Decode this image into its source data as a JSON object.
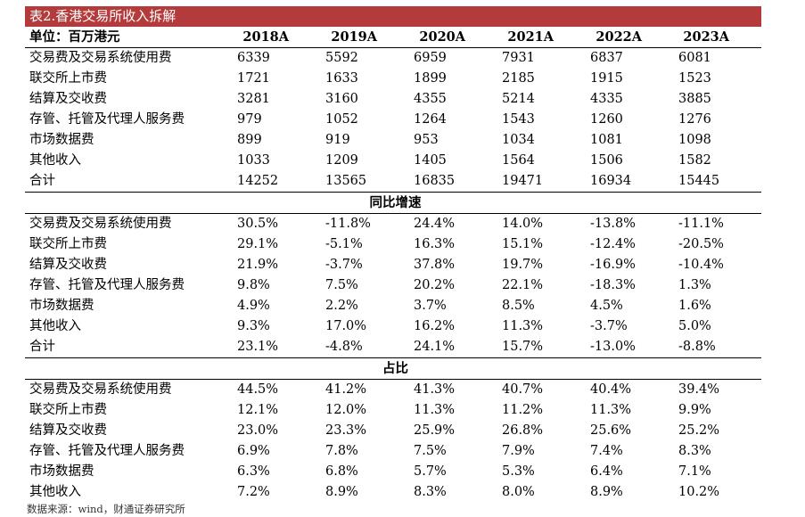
{
  "title": "表2.香港交易所收入拆解",
  "header": {
    "unit": "单位：百万港元",
    "years": [
      "2018A",
      "2019A",
      "2020A",
      "2021A",
      "2022A",
      "2023A"
    ]
  },
  "sections": [
    {
      "name": "",
      "rows": [
        {
          "label": "交易费及交易系统使用费",
          "values": [
            "6339",
            "5592",
            "6959",
            "7931",
            "6837",
            "6081"
          ]
        },
        {
          "label": "联交所上市费",
          "values": [
            "1721",
            "1633",
            "1899",
            "2185",
            "1915",
            "1523"
          ]
        },
        {
          "label": "结算及交收费",
          "values": [
            "3281",
            "3160",
            "4355",
            "5214",
            "4335",
            "3885"
          ]
        },
        {
          "label": "存管、托管及代理人服务费",
          "values": [
            "979",
            "1052",
            "1264",
            "1543",
            "1260",
            "1276"
          ]
        },
        {
          "label": "市场数据费",
          "values": [
            "899",
            "919",
            "953",
            "1034",
            "1081",
            "1098"
          ]
        },
        {
          "label": "其他收入",
          "values": [
            "1033",
            "1209",
            "1405",
            "1564",
            "1506",
            "1582"
          ]
        },
        {
          "label": "合计",
          "values": [
            "14252",
            "13565",
            "16835",
            "19471",
            "16934",
            "15445"
          ]
        }
      ]
    },
    {
      "name": "同比增速",
      "rows": [
        {
          "label": "交易费及交易系统使用费",
          "values": [
            "30.5%",
            "-11.8%",
            "24.4%",
            "14.0%",
            "-13.8%",
            "-11.1%"
          ]
        },
        {
          "label": "联交所上市费",
          "values": [
            "29.1%",
            "-5.1%",
            "16.3%",
            "15.1%",
            "-12.4%",
            "-20.5%"
          ]
        },
        {
          "label": "结算及交收费",
          "values": [
            "21.9%",
            "-3.7%",
            "37.8%",
            "19.7%",
            "-16.9%",
            "-10.4%"
          ]
        },
        {
          "label": "存管、托管及代理人服务费",
          "values": [
            "9.8%",
            "7.5%",
            "20.2%",
            "22.1%",
            "-18.3%",
            "1.3%"
          ]
        },
        {
          "label": "市场数据费",
          "values": [
            "4.9%",
            "2.2%",
            "3.7%",
            "8.5%",
            "4.5%",
            "1.6%"
          ]
        },
        {
          "label": "其他收入",
          "values": [
            "9.3%",
            "17.0%",
            "16.2%",
            "11.3%",
            "-3.7%",
            "5.0%"
          ]
        },
        {
          "label": "合计",
          "values": [
            "23.1%",
            "-4.8%",
            "24.1%",
            "15.7%",
            "-13.0%",
            "-8.8%"
          ]
        }
      ]
    },
    {
      "name": "占比",
      "rows": [
        {
          "label": "交易费及交易系统使用费",
          "values": [
            "44.5%",
            "41.2%",
            "41.3%",
            "40.7%",
            "40.4%",
            "39.4%"
          ]
        },
        {
          "label": "联交所上市费",
          "values": [
            "12.1%",
            "12.0%",
            "11.3%",
            "11.2%",
            "11.3%",
            "9.9%"
          ]
        },
        {
          "label": "结算及交收费",
          "values": [
            "23.0%",
            "23.3%",
            "25.9%",
            "26.8%",
            "25.6%",
            "25.2%"
          ]
        },
        {
          "label": "存管、托管及代理人服务费",
          "values": [
            "6.9%",
            "7.8%",
            "7.5%",
            "7.9%",
            "7.4%",
            "8.3%"
          ]
        },
        {
          "label": "市场数据费",
          "values": [
            "6.3%",
            "6.8%",
            "5.7%",
            "5.3%",
            "6.4%",
            "7.1%"
          ]
        },
        {
          "label": "其他收入",
          "values": [
            "7.2%",
            "8.9%",
            "8.3%",
            "8.0%",
            "8.9%",
            "10.2%"
          ]
        }
      ]
    }
  ],
  "source": "数据来源：wind，财通证券研究所",
  "colors": {
    "title_bg": "#b33b3b",
    "title_text": "#ffffff"
  }
}
